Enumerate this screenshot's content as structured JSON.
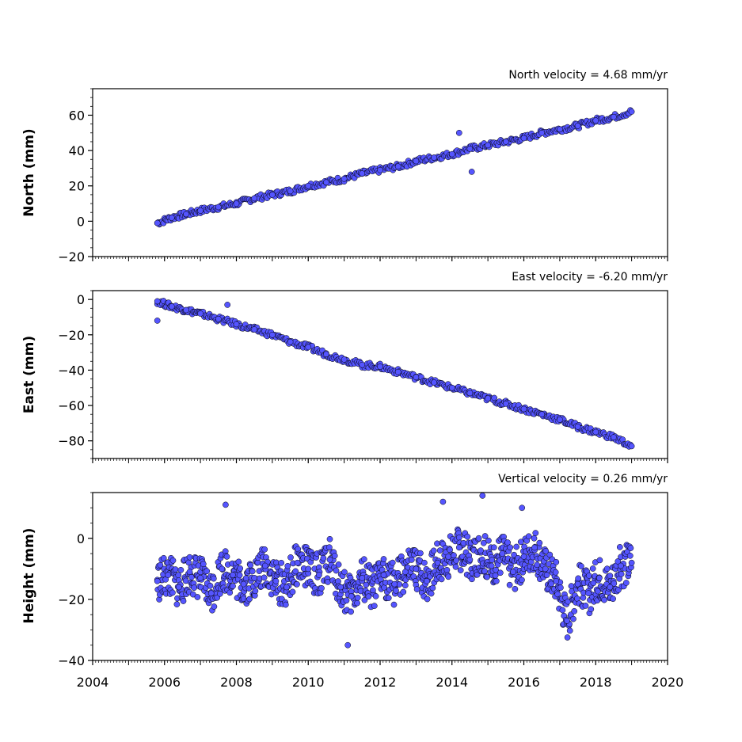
{
  "chart_data": [
    {
      "type": "scatter",
      "title": "North velocity = 4.68 mm/yr",
      "ylabel": "North (mm)",
      "xlabel": "",
      "xlim": [
        2004,
        2020
      ],
      "ylim": [
        -20,
        75
      ],
      "yticks": [
        -20,
        0,
        20,
        40,
        60
      ],
      "xticks": [
        2004,
        2006,
        2008,
        2010,
        2012,
        2014,
        2016,
        2018,
        2020
      ],
      "show_x_tick_labels": false,
      "grid": false,
      "marker_color": "#5555ff",
      "marker_edge": "#000000",
      "series": [
        {
          "x": [
            2005.8,
            2006.2,
            2006.6,
            2007.0,
            2007.5,
            2008.0,
            2008.5,
            2009.0,
            2009.5,
            2010.0,
            2010.5,
            2011.0,
            2011.5,
            2012.0,
            2012.5,
            2013.0,
            2013.5,
            2014.0,
            2014.5,
            2015.0,
            2015.5,
            2016.0,
            2016.5,
            2017.0,
            2017.5,
            2018.0,
            2018.5,
            2019.0,
            2014.2,
            2014.55
          ],
          "y": [
            -1,
            2,
            4,
            6,
            8,
            10,
            13,
            15,
            17,
            20,
            22,
            24,
            27,
            29,
            31,
            34,
            36,
            38,
            41,
            43,
            45,
            47,
            50,
            52,
            54,
            57,
            59,
            62,
            50,
            28
          ]
        }
      ]
    },
    {
      "type": "scatter",
      "title": "East velocity = -6.20 mm/yr",
      "ylabel": "East (mm)",
      "xlabel": "",
      "xlim": [
        2004,
        2020
      ],
      "ylim": [
        -90,
        5
      ],
      "yticks": [
        -80,
        -60,
        -40,
        -20,
        0
      ],
      "xticks": [
        2004,
        2006,
        2008,
        2010,
        2012,
        2014,
        2016,
        2018,
        2020
      ],
      "show_x_tick_labels": false,
      "grid": false,
      "marker_color": "#5555ff",
      "marker_edge": "#000000",
      "series": [
        {
          "x": [
            2005.8,
            2006.2,
            2006.6,
            2007.0,
            2007.5,
            2008.0,
            2008.5,
            2009.0,
            2009.5,
            2010.0,
            2010.5,
            2011.0,
            2011.5,
            2012.0,
            2012.5,
            2013.0,
            2013.5,
            2014.0,
            2014.5,
            2015.0,
            2015.5,
            2016.0,
            2016.5,
            2017.0,
            2017.5,
            2018.0,
            2018.5,
            2019.0,
            2005.8,
            2007.75
          ],
          "y": [
            -1,
            -4,
            -6,
            -8,
            -11,
            -14,
            -17,
            -20,
            -24,
            -27,
            -31,
            -34,
            -37,
            -38,
            -41,
            -44,
            -47,
            -50,
            -53,
            -56,
            -59,
            -62,
            -65,
            -68,
            -72,
            -75,
            -78,
            -83,
            -12,
            -3
          ]
        }
      ]
    },
    {
      "type": "scatter",
      "title": "Vertical velocity = 0.26 mm/yr",
      "ylabel": "Height (mm)",
      "xlabel": "",
      "xlim": [
        2004,
        2020
      ],
      "ylim": [
        -40,
        15
      ],
      "yticks": [
        -40,
        -20,
        0
      ],
      "xticks": [
        2004,
        2006,
        2008,
        2010,
        2012,
        2014,
        2016,
        2018,
        2020
      ],
      "xtick_labels": [
        "2004",
        "2006",
        "2008",
        "2010",
        "2012",
        "2014",
        "2016",
        "2018",
        "2020"
      ],
      "show_x_tick_labels": true,
      "grid": false,
      "marker_color": "#5555ff",
      "marker_edge": "#000000",
      "series": [
        {
          "x": [
            2005.8,
            2006.1,
            2006.4,
            2006.7,
            2007.0,
            2007.3,
            2007.6,
            2007.9,
            2008.2,
            2008.5,
            2008.8,
            2009.1,
            2009.4,
            2009.7,
            2010.0,
            2010.3,
            2010.6,
            2010.9,
            2011.2,
            2011.5,
            2011.8,
            2012.1,
            2012.4,
            2012.7,
            2013.0,
            2013.3,
            2013.6,
            2013.9,
            2014.2,
            2014.5,
            2014.8,
            2015.1,
            2015.4,
            2015.7,
            2016.0,
            2016.3,
            2016.6,
            2016.9,
            2017.2,
            2017.5,
            2017.8,
            2018.1,
            2018.4,
            2018.7,
            2019.0,
            2007.7,
            2014.85,
            2011.1,
            2013.75,
            2015.95
          ],
          "y": [
            -14,
            -12,
            -16,
            -11,
            -13,
            -18,
            -10,
            -12,
            -15,
            -13,
            -9,
            -14,
            -16,
            -8,
            -10,
            -12,
            -7,
            -16,
            -19,
            -13,
            -17,
            -12,
            -15,
            -11,
            -10,
            -14,
            -8,
            -6,
            -3,
            -7,
            -4,
            -9,
            -5,
            -11,
            -6,
            -3,
            -10,
            -14,
            -27,
            -15,
            -18,
            -13,
            -16,
            -9,
            -8,
            11,
            14,
            -35,
            12,
            10
          ]
        }
      ]
    }
  ]
}
